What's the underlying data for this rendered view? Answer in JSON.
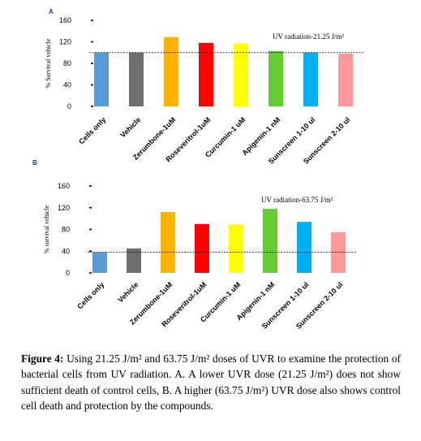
{
  "chart_data": [
    {
      "type": "bar",
      "panel": "A",
      "categories": [
        "Cells only",
        "Vehicle",
        "Zerumbone-1uM",
        "Roseveritrol-1uM",
        "Curcumin-1 uM",
        "Apigenin-1 nM",
        "Sunscreen 1-10 ul",
        "Sunscreen 2-10 ul"
      ],
      "values": [
        100,
        100,
        129,
        118,
        117,
        103,
        100,
        98
      ],
      "colors": [
        "#5b9bd5",
        "#6e6e6e",
        "#ffb300",
        "#ff0000",
        "#ffff00",
        "#66cc33",
        "#00b0f0",
        "#ff9999"
      ],
      "ylabel": "% Survival vehicle",
      "yticks": [
        "0",
        "40",
        "80",
        "120",
        "160"
      ],
      "ylim": [
        0,
        160
      ],
      "reference_line": 100,
      "annotation": "UV radiation-21.25 J/m²"
    },
    {
      "type": "bar",
      "panel": "B",
      "categories": [
        "Cells only",
        "Vehicle",
        "Zerumbone-1uM",
        "Roseveritrol-1uM",
        "Curcumin-1 uM",
        "Apigenin-1 nM",
        "Sunscreen 1-10 ul",
        "Sunscreen 2-10 ul"
      ],
      "values": [
        38,
        45,
        112,
        90,
        89,
        118,
        94,
        75
      ],
      "colors": [
        "#5b9bd5",
        "#6e6e6e",
        "#ffb300",
        "#ff0000",
        "#ffff00",
        "#66cc33",
        "#00b0f0",
        "#ff9999"
      ],
      "ylabel": "% survival vehicle",
      "yticks": [
        "0",
        "40",
        "80",
        "120",
        "160"
      ],
      "ylim": [
        0,
        160
      ],
      "reference_line": 38,
      "annotation": "UV radiation-63.75 J/m²"
    }
  ],
  "caption": {
    "label": "Figure 4:",
    "text": "Using 21.25 J/m² and 63.75 J/m² doses of UVR to examine the protection of bacterial cells from UV radiation. A. A lower UVR dose (21.25 J/m²) does not show sufficient death of control cells, B. A higher (63.75 J/m²) UVR dose also shows control cell death and protection by the compounds."
  }
}
